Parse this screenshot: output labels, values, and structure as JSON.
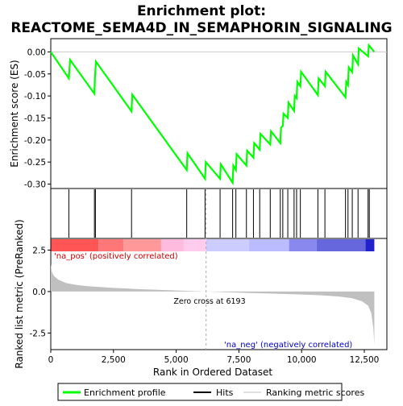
{
  "chart_data": {
    "type": "line",
    "title_line1": "Enrichment plot:",
    "title_line2": "REACTOME_SEMA4D_IN_SEMAPHORIN_SIGNALING",
    "es_panel": {
      "ylabel": "Enrichment score (ES)",
      "ylim": [
        -0.31,
        0.03
      ],
      "yticks": [
        0.0,
        -0.05,
        -0.1,
        -0.15,
        -0.2,
        -0.25,
        -0.3
      ],
      "ytick_labels": [
        "0.00",
        "-0.05",
        "-0.10",
        "-0.15",
        "-0.20",
        "-0.25",
        "-0.30"
      ],
      "color": "#00ff00",
      "points": [
        [
          0,
          0.0
        ],
        [
          720,
          -0.06
        ],
        [
          770,
          -0.018
        ],
        [
          1740,
          -0.095
        ],
        [
          1760,
          -0.06
        ],
        [
          1800,
          -0.022
        ],
        [
          3220,
          -0.135
        ],
        [
          3250,
          -0.097
        ],
        [
          5420,
          -0.268
        ],
        [
          5450,
          -0.23
        ],
        [
          6150,
          -0.288
        ],
        [
          6180,
          -0.25
        ],
        [
          6750,
          -0.288
        ],
        [
          6780,
          -0.255
        ],
        [
          7250,
          -0.297
        ],
        [
          7280,
          -0.258
        ],
        [
          7380,
          -0.268
        ],
        [
          7410,
          -0.232
        ],
        [
          7800,
          -0.258
        ],
        [
          7830,
          -0.224
        ],
        [
          8080,
          -0.24
        ],
        [
          8110,
          -0.207
        ],
        [
          8330,
          -0.222
        ],
        [
          8360,
          -0.186
        ],
        [
          8750,
          -0.21
        ],
        [
          8780,
          -0.18
        ],
        [
          9150,
          -0.207
        ],
        [
          9180,
          -0.172
        ],
        [
          9250,
          -0.168
        ],
        [
          9280,
          -0.14
        ],
        [
          9450,
          -0.15
        ],
        [
          9480,
          -0.115
        ],
        [
          9700,
          -0.134
        ],
        [
          9730,
          -0.1
        ],
        [
          9800,
          -0.105
        ],
        [
          9830,
          -0.068
        ],
        [
          9950,
          -0.078
        ],
        [
          9980,
          -0.045
        ],
        [
          10650,
          -0.098
        ],
        [
          10680,
          -0.06
        ],
        [
          10930,
          -0.078
        ],
        [
          10960,
          -0.045
        ],
        [
          11750,
          -0.103
        ],
        [
          11780,
          -0.068
        ],
        [
          11850,
          -0.075
        ],
        [
          11880,
          -0.035
        ],
        [
          12020,
          -0.046
        ],
        [
          12050,
          -0.008
        ],
        [
          12250,
          -0.028
        ],
        [
          12280,
          0.008
        ],
        [
          12650,
          -0.01
        ],
        [
          12680,
          0.015
        ],
        [
          12900,
          0.0
        ]
      ]
    },
    "hits": [
      720,
      1740,
      1780,
      3220,
      5420,
      6150,
      6750,
      7250,
      7380,
      7800,
      8080,
      8330,
      8750,
      9150,
      9250,
      9450,
      9700,
      9800,
      9950,
      10650,
      10930,
      11750,
      11850,
      12020,
      12250,
      12650,
      12700
    ],
    "color_bar": {
      "segments": [
        {
          "from": 0,
          "to": 1900,
          "color": "#ff5555"
        },
        {
          "from": 1900,
          "to": 2900,
          "color": "#ff7777"
        },
        {
          "from": 2900,
          "to": 4400,
          "color": "#ff9999"
        },
        {
          "from": 4400,
          "to": 5300,
          "color": "#ffbbdd"
        },
        {
          "from": 5300,
          "to": 6193,
          "color": "#ffccee"
        },
        {
          "from": 6193,
          "to": 7900,
          "color": "#ccccff"
        },
        {
          "from": 7900,
          "to": 9500,
          "color": "#bbbbff"
        },
        {
          "from": 9500,
          "to": 10600,
          "color": "#8888ee"
        },
        {
          "from": 10600,
          "to": 12550,
          "color": "#6666dd"
        },
        {
          "from": 12550,
          "to": 12900,
          "color": "#2222cc"
        }
      ]
    },
    "metric_panel": {
      "ylabel": "Ranked list metric (PreRanked)",
      "ylim": [
        -3.5,
        3.2
      ],
      "yticks": [
        2.5,
        0.0,
        -2.5
      ],
      "ytick_labels": [
        "2.5",
        "0.0",
        "-2.5"
      ],
      "pos_label": "'na_pos' (positively correlated)",
      "neg_label": "'na_neg' (negatively correlated)",
      "zero_cross_label": "Zero cross at 6193",
      "zero_cross": 6193,
      "fill_color": "#c0c0c0",
      "curve": [
        [
          0,
          1.65
        ],
        [
          40,
          1.2
        ],
        [
          120,
          0.95
        ],
        [
          300,
          0.72
        ],
        [
          600,
          0.52
        ],
        [
          1000,
          0.4
        ],
        [
          1500,
          0.32
        ],
        [
          2500,
          0.22
        ],
        [
          3500,
          0.15
        ],
        [
          4500,
          0.09
        ],
        [
          5500,
          0.04
        ],
        [
          6193,
          0.0
        ],
        [
          7000,
          -0.04
        ],
        [
          8000,
          -0.09
        ],
        [
          9000,
          -0.13
        ],
        [
          10000,
          -0.18
        ],
        [
          10800,
          -0.23
        ],
        [
          11500,
          -0.3
        ],
        [
          12000,
          -0.4
        ],
        [
          12400,
          -0.58
        ],
        [
          12650,
          -0.85
        ],
        [
          12780,
          -1.3
        ],
        [
          12860,
          -2.2
        ],
        [
          12900,
          -3.2
        ]
      ]
    },
    "xaxis": {
      "xlabel": "Rank in Ordered Dataset",
      "xlim": [
        0,
        13400
      ],
      "xticks": [
        0,
        2500,
        5000,
        7500,
        10000,
        12500
      ],
      "xtick_labels": [
        "0",
        "2,500",
        "5,000",
        "7,500",
        "10,000",
        "12,500"
      ]
    },
    "legend": {
      "placement": "bottom",
      "items": [
        {
          "label": "Enrichment profile",
          "color": "#00ff00"
        },
        {
          "label": "Hits",
          "color": "#000000"
        },
        {
          "label": "Ranking metric scores",
          "color": "#c0c0c0"
        }
      ]
    }
  }
}
